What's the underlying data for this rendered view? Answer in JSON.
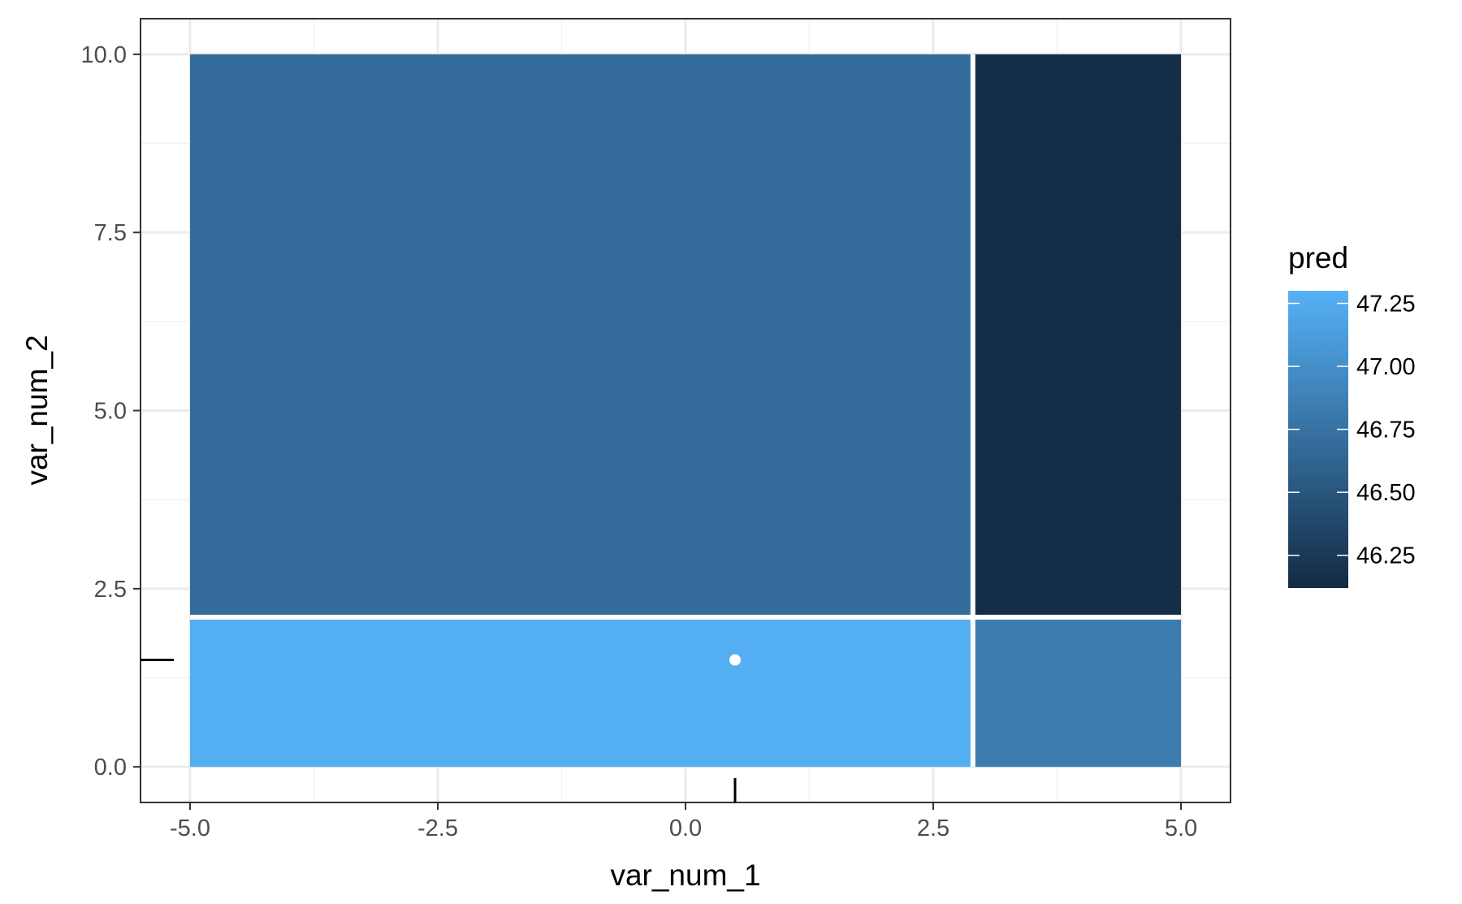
{
  "chart_data": {
    "type": "heatmap",
    "xlabel": "var_num_1",
    "ylabel": "var_num_2",
    "xlim": [
      -5.5,
      5.5
    ],
    "ylim": [
      -0.5,
      10.5
    ],
    "x_ticks": [
      {
        "value": -5.0,
        "label": "-5.0"
      },
      {
        "value": -2.5,
        "label": "-2.5"
      },
      {
        "value": 0.0,
        "label": "0.0"
      },
      {
        "value": 2.5,
        "label": "2.5"
      },
      {
        "value": 5.0,
        "label": "5.0"
      }
    ],
    "y_ticks": [
      {
        "value": 0.0,
        "label": "0.0"
      },
      {
        "value": 2.5,
        "label": "2.5"
      },
      {
        "value": 5.0,
        "label": "5.0"
      },
      {
        "value": 7.5,
        "label": "7.5"
      },
      {
        "value": 10.0,
        "label": "10.0"
      }
    ],
    "grid": true,
    "cells": [
      {
        "x0": -5.0,
        "x1": 2.9,
        "y0": 2.1,
        "y1": 10.0,
        "pred": 46.69
      },
      {
        "x0": 2.9,
        "x1": 5.0,
        "y0": 2.1,
        "y1": 10.0,
        "pred": 46.15
      },
      {
        "x0": -5.0,
        "x1": 2.9,
        "y0": 0.0,
        "y1": 2.1,
        "pred": 47.27
      },
      {
        "x0": 2.9,
        "x1": 5.0,
        "y0": 0.0,
        "y1": 2.1,
        "pred": 46.84
      }
    ],
    "split_lines": {
      "x": 2.9,
      "y": 2.1
    },
    "point": {
      "x": 0.5,
      "y": 1.5
    },
    "rug": {
      "x": 0.5,
      "y": 1.5
    },
    "legend": {
      "title": "pred",
      "position": "right",
      "min": 46.12,
      "max": 47.3,
      "low_color": "#132B43",
      "high_color": "#56B1F7",
      "breaks": [
        {
          "value": 47.25,
          "label": "47.25"
        },
        {
          "value": 47.0,
          "label": "47.00"
        },
        {
          "value": 46.75,
          "label": "46.75"
        },
        {
          "value": 46.5,
          "label": "46.50"
        },
        {
          "value": 46.25,
          "label": "46.25"
        }
      ]
    }
  }
}
